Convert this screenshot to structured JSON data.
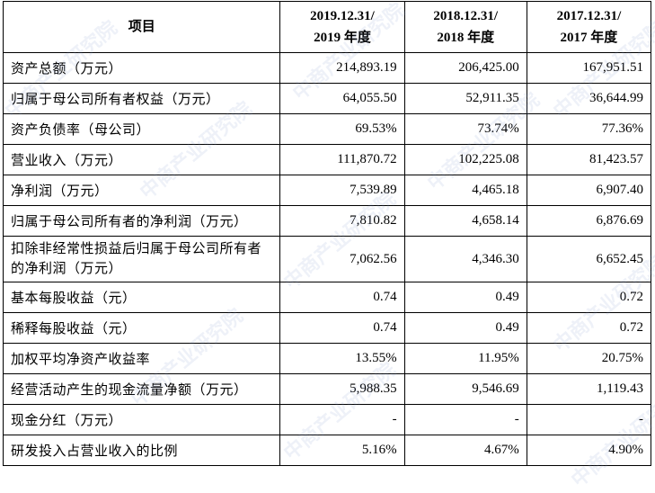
{
  "watermark": "中商产业研究院",
  "table": {
    "header": [
      [
        "项目"
      ],
      [
        "2019.12.31/",
        "2019 年度"
      ],
      [
        "2018.12.31/",
        "2018 年度"
      ],
      [
        "2017.12.31/",
        "2017 年度"
      ]
    ],
    "rows": [
      [
        "资产总额（万元）",
        "214,893.19",
        "206,425.00",
        "167,951.51"
      ],
      [
        "归属于母公司所有者权益（万元）",
        "64,055.50",
        "52,911.35",
        "36,644.99"
      ],
      [
        "资产负债率（母公司）",
        "69.53%",
        "73.74%",
        "77.36%"
      ],
      [
        "营业收入（万元）",
        "111,870.72",
        "102,225.08",
        "81,423.57"
      ],
      [
        "净利润（万元）",
        "7,539.89",
        "4,465.18",
        "6,907.40"
      ],
      [
        "归属于母公司所有者的净利润（万元）",
        "7,810.82",
        "4,658.14",
        "6,876.69"
      ],
      [
        "扣除非经常性损益后归属于母公司所有者的净利润（万元）",
        "7,062.56",
        "4,346.30",
        "6,652.45"
      ],
      [
        "基本每股收益（元）",
        "0.74",
        "0.49",
        "0.72"
      ],
      [
        "稀释每股收益（元）",
        "0.74",
        "0.49",
        "0.72"
      ],
      [
        "加权平均净资产收益率",
        "13.55%",
        "11.95%",
        "20.75%"
      ],
      [
        "经营活动产生的现金流量净额（万元）",
        "5,988.35",
        "9,546.69",
        "1,119.43"
      ],
      [
        "现金分红（万元）",
        "-",
        "-",
        "-"
      ],
      [
        "研发投入占营业收入的比例",
        "5.16%",
        "4.67%",
        "4.90%"
      ]
    ]
  }
}
